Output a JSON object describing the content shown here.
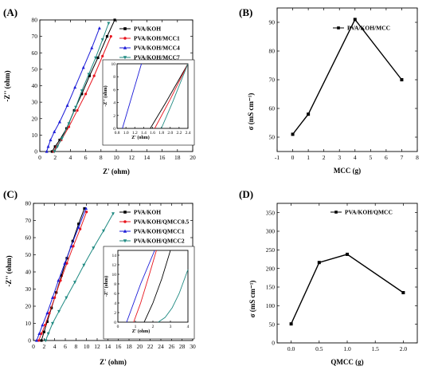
{
  "chart_data": [
    {
      "panel": "(A)",
      "type": "line",
      "xlabel": "Z' (ohm)",
      "ylabel": "-Z'' (ohm)",
      "xlim": [
        0,
        20
      ],
      "ylim": [
        0,
        80
      ],
      "xticks": [
        0,
        2,
        4,
        6,
        8,
        10,
        12,
        14,
        16,
        18,
        20
      ],
      "yticks": [
        0,
        10,
        20,
        30,
        40,
        50,
        60,
        70,
        80
      ],
      "legend_position": "top-right",
      "series": [
        {
          "name": "PVA/KOH",
          "color": "#000000",
          "marker": "square",
          "x": [
            1.6,
            2.0,
            2.6,
            3.5,
            4.5,
            5.5,
            6.5,
            7.6,
            8.8,
            9.8
          ],
          "y": [
            0,
            3,
            7,
            14,
            25,
            35,
            46,
            57,
            70,
            80
          ]
        },
        {
          "name": "PVA/KOH/MCC1",
          "color": "#e8141d",
          "marker": "circle",
          "x": [
            1.8,
            2.2,
            2.8,
            3.8,
            4.9,
            6.0,
            7.1,
            8.2,
            9.3
          ],
          "y": [
            0,
            3,
            7,
            15,
            25,
            35,
            46,
            58,
            70
          ]
        },
        {
          "name": "PVA/KOH/MCC4",
          "color": "#1b1bd8",
          "marker": "triangle-up",
          "x": [
            0.9,
            1.1,
            1.4,
            1.9,
            2.6,
            3.6,
            4.6,
            5.7,
            6.8,
            7.8
          ],
          "y": [
            0,
            3,
            7,
            12,
            18,
            28,
            39,
            51,
            63,
            75
          ]
        },
        {
          "name": "PVA/KOH/MCC7",
          "color": "#1f8a82",
          "marker": "triangle-down",
          "x": [
            1.9,
            2.3,
            2.9,
            3.8,
            4.7,
            5.5,
            6.4,
            7.3,
            8.2,
            9.0
          ],
          "y": [
            0,
            3,
            8,
            17,
            27,
            37,
            47,
            57,
            68,
            78
          ]
        }
      ],
      "inset": {
        "xlim": [
          0.8,
          2.4
        ],
        "ylim": [
          0,
          10
        ],
        "xticks": [
          0.8,
          1.0,
          1.2,
          1.4,
          1.6,
          1.8,
          2.0,
          2.2,
          2.4
        ],
        "yticks": [
          0,
          2,
          4,
          6,
          8,
          10
        ],
        "xticklabels": [
          "0.8",
          "1.0",
          "1.2",
          "1.4",
          "1.6",
          "1.8",
          "2.0",
          "2.2",
          "2.4"
        ],
        "yticklabels": [
          "0",
          "2",
          "4",
          "6",
          "8",
          "10"
        ],
        "xlabel": "Z' (ohm)",
        "ylabel": "-Z'' (ohm)",
        "series": [
          {
            "name": "PVA/KOH",
            "color": "#000000",
            "x": [
              1.55,
              1.9,
              2.4
            ],
            "y": [
              0,
              4,
              10
            ]
          },
          {
            "name": "PVA/KOH/MCC1",
            "color": "#e8141d",
            "x": [
              1.65,
              2.0,
              2.4
            ],
            "y": [
              0,
              4.5,
              10
            ]
          },
          {
            "name": "PVA/KOH/MCC4",
            "color": "#1b1bd8",
            "x": [
              0.92,
              1.35
            ],
            "y": [
              0,
              10
            ]
          },
          {
            "name": "PVA/KOH/MCC7",
            "color": "#1f8a82",
            "x": [
              1.8,
              2.05,
              2.4
            ],
            "y": [
              0,
              4,
              10
            ]
          }
        ]
      }
    },
    {
      "panel": "(B)",
      "type": "line",
      "xlabel": "MCC (g)",
      "ylabel": "σ (mS cm⁻¹)",
      "xlim": [
        -1,
        8
      ],
      "ylim": [
        45,
        95
      ],
      "xticks": [
        -1,
        0,
        1,
        2,
        3,
        4,
        5,
        6,
        7,
        8
      ],
      "yticks": [
        50,
        60,
        70,
        80,
        90
      ],
      "legend_position": "top-right",
      "series": [
        {
          "name": "PVA/KOH/MCC",
          "color": "#000000",
          "marker": "square",
          "x": [
            0,
            1,
            4,
            7
          ],
          "y": [
            51,
            58,
            91,
            70
          ]
        }
      ]
    },
    {
      "panel": "(C)",
      "type": "line",
      "xlabel": "Z' (ohm)",
      "ylabel": "-Z'' (ohm)",
      "xlim": [
        0,
        30
      ],
      "ylim": [
        0,
        80
      ],
      "xticks": [
        0,
        2,
        4,
        6,
        8,
        10,
        12,
        14,
        16,
        18,
        20,
        22,
        24,
        26,
        28,
        30
      ],
      "yticks": [
        0,
        10,
        20,
        30,
        40,
        50,
        60,
        70,
        80
      ],
      "legend_position": "top-right",
      "series": [
        {
          "name": "PVA/KOH",
          "color": "#000000",
          "marker": "square",
          "x": [
            1.5,
            2.0,
            2.6,
            3.4,
            4.3,
            5.3,
            6.3,
            7.4,
            8.5,
            9.6
          ],
          "y": [
            0,
            5,
            11,
            19,
            28,
            38,
            48,
            58,
            68,
            77
          ]
        },
        {
          "name": "PVA/KOH/QMCC0.5",
          "color": "#e8141d",
          "marker": "circle",
          "x": [
            1.0,
            1.5,
            2.2,
            3.0,
            4.0,
            5.1,
            6.3,
            7.5,
            8.8,
            10.0
          ],
          "y": [
            0,
            4,
            9,
            16,
            25,
            35,
            45,
            55,
            65,
            75
          ]
        },
        {
          "name": "PVA/KOH/QMCC1",
          "color": "#1b1bd8",
          "marker": "triangle-up",
          "x": [
            0.6,
            1.1,
            1.7,
            2.6,
            3.6,
            4.7,
            5.9,
            7.1,
            8.5,
            9.9
          ],
          "y": [
            0,
            4,
            9,
            16,
            25,
            35,
            45,
            55,
            66,
            77
          ]
        },
        {
          "name": "PVA/KOH/QMCC2",
          "color": "#1f8a82",
          "marker": "triangle-down",
          "x": [
            2.3,
            2.8,
            3.6,
            4.8,
            6.2,
            7.8,
            9.5,
            11.3,
            13.2,
            15.0
          ],
          "y": [
            0,
            4,
            10,
            17,
            25,
            34,
            44,
            54,
            64,
            74
          ]
        }
      ],
      "inset": {
        "xlim": [
          0,
          4
        ],
        "ylim": [
          0,
          15
        ],
        "xticks": [
          0,
          1,
          2,
          3,
          4
        ],
        "yticks": [
          0,
          2,
          4,
          6,
          8,
          10,
          12,
          14
        ],
        "xticklabels": [
          "0",
          "1",
          "2",
          "3",
          "4"
        ],
        "yticklabels": [
          "0",
          "2",
          "4",
          "6",
          "8",
          "10",
          "12",
          "14"
        ],
        "xlabel": "Z' (ohm)",
        "ylabel": "-Z'' (ohm)",
        "series": [
          {
            "name": "PVA/KOH",
            "color": "#000000",
            "x": [
              1.5,
              2.0,
              2.5,
              3.0
            ],
            "y": [
              0,
              4,
              9,
              15
            ]
          },
          {
            "name": "PVA/KOH/QMCC0.5",
            "color": "#e8141d",
            "x": [
              0.9,
              1.3,
              1.8,
              2.2
            ],
            "y": [
              0,
              4,
              10,
              15
            ]
          },
          {
            "name": "PVA/KOH/QMCC1",
            "color": "#1b1bd8",
            "x": [
              0.5,
              0.8,
              1.3,
              2.1
            ],
            "y": [
              0,
              3,
              8,
              15
            ]
          },
          {
            "name": "PVA/KOH/QMCC2",
            "color": "#1f8a82",
            "x": [
              2.3,
              2.7,
              3.1,
              3.5,
              4.0
            ],
            "y": [
              0,
              1,
              3,
              6,
              11
            ]
          }
        ]
      }
    },
    {
      "panel": "(D)",
      "type": "line",
      "xlabel": "QMCC (g)",
      "ylabel": "σ (mS cm⁻¹)",
      "xlim": [
        -0.25,
        2.25
      ],
      "ylim": [
        0,
        375
      ],
      "xticks": [
        0.0,
        0.5,
        1.0,
        1.5,
        2.0
      ],
      "yticks": [
        0,
        50,
        100,
        150,
        200,
        250,
        300,
        350
      ],
      "legend_position": "top-right",
      "series": [
        {
          "name": "PVA/KOH/QMCC",
          "color": "#000000",
          "marker": "square",
          "x": [
            0,
            0.5,
            1,
            2
          ],
          "y": [
            51,
            216,
            238,
            135
          ]
        }
      ]
    }
  ]
}
